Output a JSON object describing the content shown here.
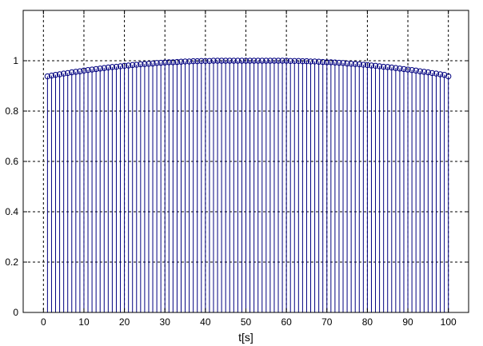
{
  "chart_data": {
    "type": "stem",
    "title": "",
    "xlabel": "t[s]",
    "ylabel": "",
    "xlim": [
      -5,
      105
    ],
    "ylim": [
      0,
      1.2
    ],
    "grid": true,
    "x_ticks": [
      "0",
      "10",
      "20",
      "30",
      "40",
      "50",
      "60",
      "70",
      "80",
      "90",
      "100"
    ],
    "y_ticks": [
      "0",
      "0.2",
      "0.4",
      "0.6",
      "0.8",
      "1"
    ],
    "x": [
      1,
      2,
      3,
      4,
      5,
      6,
      7,
      8,
      9,
      10,
      11,
      12,
      13,
      14,
      15,
      16,
      17,
      18,
      19,
      20,
      21,
      22,
      23,
      24,
      25,
      26,
      27,
      28,
      29,
      30,
      31,
      32,
      33,
      34,
      35,
      36,
      37,
      38,
      39,
      40,
      41,
      42,
      43,
      44,
      45,
      46,
      47,
      48,
      49,
      50,
      51,
      52,
      53,
      54,
      55,
      56,
      57,
      58,
      59,
      60,
      61,
      62,
      63,
      64,
      65,
      66,
      67,
      68,
      69,
      70,
      71,
      72,
      73,
      74,
      75,
      76,
      77,
      78,
      79,
      80,
      81,
      82,
      83,
      84,
      85,
      86,
      87,
      88,
      89,
      90,
      91,
      92,
      93,
      94,
      95,
      96,
      97,
      98,
      99,
      100
    ],
    "values": [
      0.938,
      0.941,
      0.944,
      0.946,
      0.949,
      0.951,
      0.954,
      0.956,
      0.958,
      0.961,
      0.963,
      0.965,
      0.967,
      0.969,
      0.971,
      0.973,
      0.975,
      0.976,
      0.978,
      0.98,
      0.981,
      0.983,
      0.984,
      0.986,
      0.987,
      0.988,
      0.989,
      0.991,
      0.992,
      0.993,
      0.994,
      0.994,
      0.995,
      0.996,
      0.997,
      0.997,
      0.998,
      0.998,
      0.999,
      0.999,
      0.999,
      1.0,
      1.0,
      1.0,
      1.0,
      1.0,
      1.0,
      1.0,
      1.0,
      1.0,
      1.0,
      1.0,
      1.0,
      1.0,
      1.0,
      1.0,
      1.0,
      1.0,
      1.0,
      1.0,
      0.999,
      0.999,
      0.999,
      0.998,
      0.998,
      0.997,
      0.997,
      0.996,
      0.995,
      0.994,
      0.994,
      0.993,
      0.992,
      0.991,
      0.989,
      0.988,
      0.987,
      0.986,
      0.984,
      0.983,
      0.981,
      0.98,
      0.978,
      0.976,
      0.975,
      0.973,
      0.971,
      0.969,
      0.967,
      0.965,
      0.963,
      0.961,
      0.958,
      0.956,
      0.954,
      0.951,
      0.949,
      0.946,
      0.944,
      0.938
    ],
    "colors": {
      "stem": "#000080",
      "grid": "#000000",
      "axes": "#000000"
    }
  }
}
